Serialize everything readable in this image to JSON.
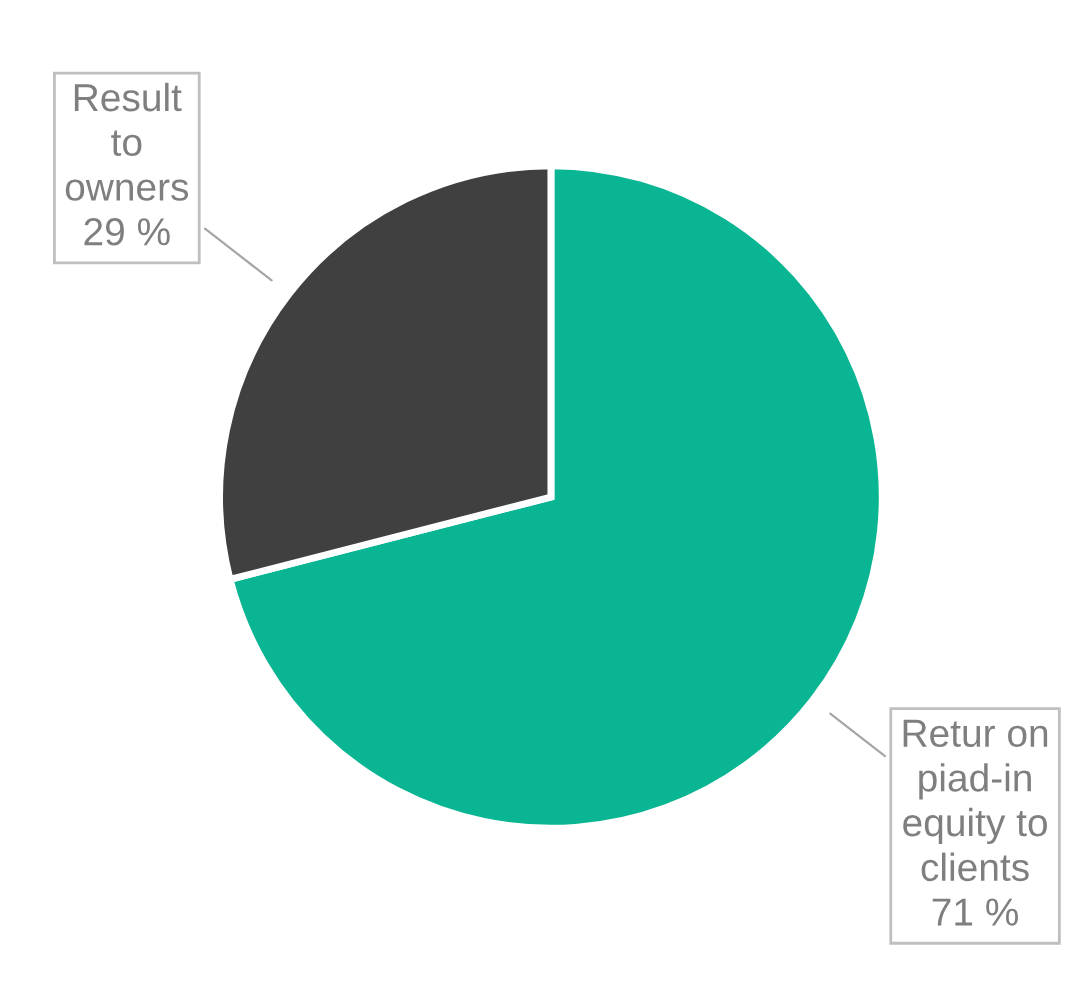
{
  "chart_data": {
    "type": "pie",
    "categories": [
      "Retur on\npiad-in\nequity to\nclients",
      "Result\nto\nowners"
    ],
    "values": [
      71,
      29
    ],
    "colors": [
      "#09b593",
      "#404040"
    ],
    "value_labels": [
      "71 %",
      "29 %"
    ]
  }
}
